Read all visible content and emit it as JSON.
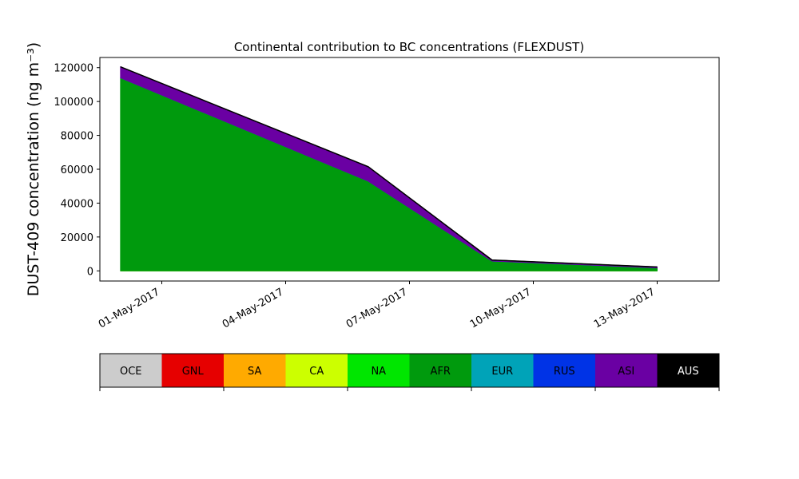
{
  "chart_data": {
    "type": "area",
    "title": "Continental contribution to BC concentrations (FLEXDUST)",
    "ylabel": "DUST-409 concentration (ng m⁻³)",
    "xlabel": "",
    "x": [
      "2017-04-30",
      "2017-05-06",
      "2017-05-09",
      "2017-05-13"
    ],
    "xlim": [
      "2017-04-29T12:00",
      "2017-05-14T12:00"
    ],
    "ylim": [
      -6000,
      126000
    ],
    "x_ticks": [
      {
        "date": "2017-05-01",
        "label": "01-May-2017"
      },
      {
        "date": "2017-05-04",
        "label": "04-May-2017"
      },
      {
        "date": "2017-05-07",
        "label": "07-May-2017"
      },
      {
        "date": "2017-05-10",
        "label": "10-May-2017"
      },
      {
        "date": "2017-05-13",
        "label": "13-May-2017"
      }
    ],
    "y_ticks": [
      0,
      20000,
      40000,
      60000,
      80000,
      100000,
      120000
    ],
    "grid": false,
    "series": [
      {
        "name": "OCE",
        "color": "#cccccc",
        "values": [
          0,
          0,
          0,
          0
        ]
      },
      {
        "name": "GNL",
        "color": "#e60000",
        "values": [
          0,
          0,
          0,
          0
        ]
      },
      {
        "name": "SA",
        "color": "#ffaa00",
        "values": [
          0,
          0,
          0,
          0
        ]
      },
      {
        "name": "CA",
        "color": "#ccff00",
        "values": [
          0,
          0,
          0,
          0
        ]
      },
      {
        "name": "NA",
        "color": "#00e600",
        "values": [
          0,
          0,
          0,
          0
        ]
      },
      {
        "name": "AFR",
        "color": "#009a0d",
        "values": [
          114000,
          53000,
          5800,
          1800
        ]
      },
      {
        "name": "EUR",
        "color": "#00a3b8",
        "values": [
          0,
          0,
          0,
          0
        ]
      },
      {
        "name": "RUS",
        "color": "#0033e6",
        "values": [
          0,
          0,
          0,
          0
        ]
      },
      {
        "name": "ASI",
        "color": "#6a00a3",
        "values": [
          6500,
          8500,
          600,
          500
        ]
      },
      {
        "name": "AUS",
        "color": "#000000",
        "values": [
          0,
          0,
          0,
          0
        ]
      }
    ],
    "legend_placement": "bottom"
  }
}
